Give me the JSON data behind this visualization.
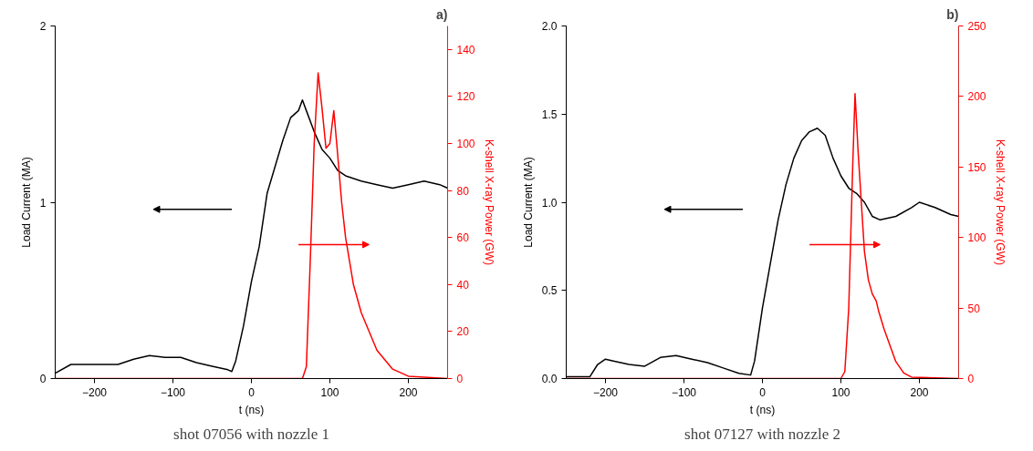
{
  "chart_data": [
    {
      "type": "line",
      "title": "a)",
      "xlabel": "t (ns)",
      "ylabel": "Load Current (MA)",
      "y2label": "K-shell X-ray Power (GW)",
      "annotations": [
        "shot 07056 with nozzle 1"
      ],
      "xlim": [
        -250,
        250
      ],
      "xticks": [
        -200,
        -100,
        0,
        100,
        200
      ],
      "ylim": [
        0,
        2
      ],
      "yticks": [
        0,
        1,
        2
      ],
      "y2lim": [
        0,
        150
      ],
      "y2ticks": [
        0,
        20,
        40,
        60,
        80,
        100,
        120,
        140
      ],
      "grid": false,
      "series": [
        {
          "color": "#000000",
          "x": [
            -250,
            -230,
            -200,
            -170,
            -150,
            -130,
            -110,
            -90,
            -70,
            -50,
            -30,
            -25,
            -20,
            -10,
            0,
            10,
            20,
            30,
            40,
            50,
            60,
            65,
            70,
            80,
            90,
            100,
            110,
            120,
            140,
            160,
            180,
            200,
            220,
            240,
            250
          ],
          "values": [
            0.03,
            0.08,
            0.08,
            0.08,
            0.11,
            0.13,
            0.12,
            0.12,
            0.09,
            0.07,
            0.05,
            0.04,
            0.1,
            0.3,
            0.55,
            0.75,
            1.05,
            1.2,
            1.35,
            1.48,
            1.52,
            1.58,
            1.52,
            1.4,
            1.3,
            1.25,
            1.18,
            1.15,
            1.12,
            1.1,
            1.08,
            1.1,
            1.12,
            1.1,
            1.08
          ]
        },
        {
          "color": "#ff0000",
          "axis": "y2",
          "x": [
            -250,
            65,
            70,
            75,
            80,
            85,
            90,
            95,
            100,
            105,
            110,
            115,
            120,
            130,
            140,
            160,
            180,
            200,
            250
          ],
          "values": [
            0,
            0,
            5,
            50,
            100,
            130,
            115,
            98,
            100,
            114,
            95,
            75,
            60,
            40,
            28,
            12,
            4,
            1,
            0
          ]
        }
      ]
    },
    {
      "type": "line",
      "title": "b)",
      "xlabel": "t (ns)",
      "ylabel": "Load Current (MA)",
      "y2label": "K-shell X-ray Power (GW)",
      "annotations": [
        "shot 07127 with nozzle 2"
      ],
      "xlim": [
        -250,
        250
      ],
      "xticks": [
        -200,
        -100,
        0,
        100,
        200
      ],
      "ylim": [
        0,
        2
      ],
      "yticks": [
        {
          "value": 0,
          "label": "0.0"
        },
        {
          "value": 0.5,
          "label": "0.5"
        },
        {
          "value": 1,
          "label": "1.0"
        },
        {
          "value": 1.5,
          "label": "1.5"
        },
        {
          "value": 2,
          "label": "2.0"
        }
      ],
      "y2lim": [
        0,
        250
      ],
      "y2ticks": [
        0,
        50,
        100,
        150,
        200,
        250
      ],
      "grid": false,
      "series": [
        {
          "color": "#000000",
          "x": [
            -250,
            -220,
            -210,
            -200,
            -190,
            -170,
            -150,
            -130,
            -110,
            -90,
            -70,
            -50,
            -30,
            -15,
            -10,
            0,
            10,
            20,
            30,
            40,
            50,
            60,
            70,
            80,
            90,
            100,
            110,
            120,
            130,
            140,
            150,
            170,
            190,
            200,
            220,
            240,
            250
          ],
          "values": [
            0.01,
            0.01,
            0.08,
            0.11,
            0.1,
            0.08,
            0.07,
            0.12,
            0.13,
            0.11,
            0.09,
            0.06,
            0.03,
            0.02,
            0.1,
            0.4,
            0.65,
            0.9,
            1.1,
            1.25,
            1.35,
            1.4,
            1.42,
            1.38,
            1.25,
            1.15,
            1.08,
            1.05,
            1.0,
            0.92,
            0.9,
            0.92,
            0.97,
            1.0,
            0.97,
            0.93,
            0.92
          ]
        },
        {
          "color": "#ff0000",
          "axis": "y2",
          "x": [
            -250,
            100,
            105,
            110,
            115,
            118,
            122,
            130,
            135,
            140,
            145,
            148,
            155,
            170,
            180,
            190,
            250
          ],
          "values": [
            0,
            0,
            5,
            50,
            150,
            202,
            160,
            90,
            70,
            60,
            55,
            48,
            35,
            12,
            4,
            1,
            0
          ]
        }
      ]
    }
  ]
}
